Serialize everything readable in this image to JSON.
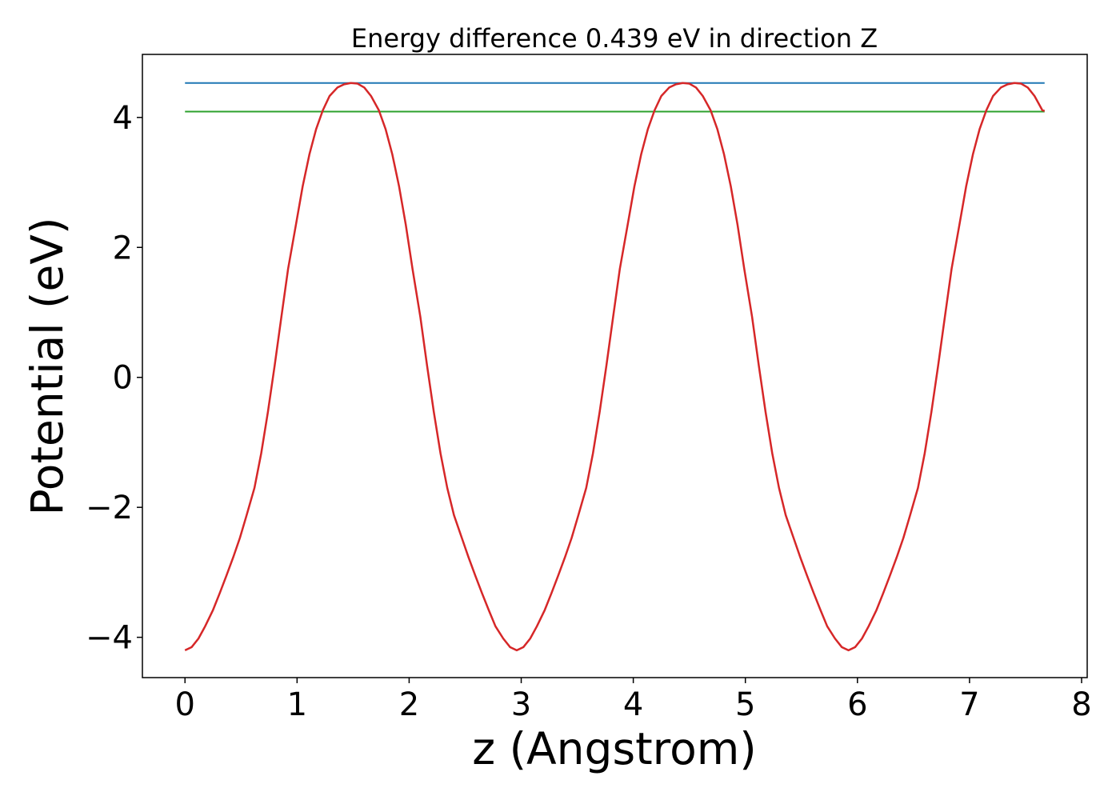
{
  "chart_data": {
    "type": "line",
    "title": "Energy difference 0.439 eV in direction Z",
    "xlabel": "z (Angstrom)",
    "ylabel": "Potential (eV)",
    "xlim": [
      -0.38,
      8.05
    ],
    "ylim": [
      -4.62,
      4.97
    ],
    "xticks": [
      0,
      1,
      2,
      3,
      4,
      5,
      6,
      7,
      8
    ],
    "yticks": [
      -4,
      -2,
      0,
      2,
      4
    ],
    "ytick_labels": [
      "−4",
      "−2",
      "0",
      "2",
      "4"
    ],
    "grid": false,
    "series": [
      {
        "color": "#d62728",
        "x": [
          0,
          0.06,
          0.12,
          0.18,
          0.25,
          0.31,
          0.37,
          0.43,
          0.49,
          0.55,
          0.62,
          0.68,
          0.74,
          0.8,
          0.86,
          0.92,
          0.99,
          1.05,
          1.11,
          1.17,
          1.23,
          1.29,
          1.36,
          1.42,
          1.48,
          1.54,
          1.6,
          1.66,
          1.73,
          1.79,
          1.85,
          1.91,
          1.97,
          2.03,
          2.1,
          2.16,
          2.22,
          2.28,
          2.34,
          2.4,
          2.47,
          2.53,
          2.59,
          2.65,
          2.71,
          2.77,
          2.84,
          2.9,
          2.96,
          3.02,
          3.08,
          3.14,
          3.21,
          3.27,
          3.33,
          3.39,
          3.45,
          3.51,
          3.58,
          3.64,
          3.7,
          3.76,
          3.82,
          3.88,
          3.95,
          4.01,
          4.07,
          4.13,
          4.19,
          4.25,
          4.32,
          4.38,
          4.44,
          4.5,
          4.56,
          4.62,
          4.69,
          4.75,
          4.81,
          4.87,
          4.93,
          4.99,
          5.06,
          5.12,
          5.18,
          5.24,
          5.3,
          5.36,
          5.43,
          5.49,
          5.55,
          5.61,
          5.67,
          5.73,
          5.8,
          5.86,
          5.92,
          5.98,
          6.04,
          6.1,
          6.17,
          6.23,
          6.29,
          6.35,
          6.41,
          6.47,
          6.54,
          6.6,
          6.66,
          6.72,
          6.78,
          6.84,
          6.91,
          6.97,
          7.03,
          7.09,
          7.15,
          7.21,
          7.28,
          7.34,
          7.4,
          7.46,
          7.52,
          7.58,
          7.65,
          7.67
        ],
        "y": [
          -4.2,
          -4.15,
          -4.02,
          -3.83,
          -3.58,
          -3.32,
          -3.05,
          -2.77,
          -2.47,
          -2.12,
          -1.7,
          -1.17,
          -0.53,
          0.18,
          0.93,
          1.67,
          2.35,
          2.94,
          3.43,
          3.82,
          4.11,
          4.33,
          4.46,
          4.51,
          4.53,
          4.52,
          4.46,
          4.33,
          4.11,
          3.82,
          3.43,
          2.94,
          2.35,
          1.67,
          0.93,
          0.18,
          -0.53,
          -1.17,
          -1.7,
          -2.12,
          -2.47,
          -2.77,
          -3.05,
          -3.32,
          -3.58,
          -3.83,
          -4.02,
          -4.15,
          -4.2,
          -4.15,
          -4.02,
          -3.83,
          -3.58,
          -3.32,
          -3.05,
          -2.77,
          -2.47,
          -2.12,
          -1.7,
          -1.17,
          -0.53,
          0.18,
          0.93,
          1.67,
          2.35,
          2.94,
          3.43,
          3.82,
          4.11,
          4.33,
          4.46,
          4.51,
          4.53,
          4.52,
          4.46,
          4.33,
          4.11,
          3.82,
          3.43,
          2.94,
          2.35,
          1.67,
          0.93,
          0.18,
          -0.53,
          -1.17,
          -1.7,
          -2.12,
          -2.47,
          -2.77,
          -3.05,
          -3.32,
          -3.58,
          -3.83,
          -4.02,
          -4.15,
          -4.2,
          -4.15,
          -4.02,
          -3.83,
          -3.58,
          -3.32,
          -3.05,
          -2.77,
          -2.47,
          -2.12,
          -1.7,
          -1.17,
          -0.53,
          0.18,
          0.93,
          1.67,
          2.35,
          2.94,
          3.43,
          3.82,
          4.11,
          4.33,
          4.46,
          4.51,
          4.53,
          4.52,
          4.46,
          4.33,
          4.11,
          4.1
        ]
      },
      {
        "color": "#1f77b4",
        "x": [
          0,
          7.67
        ],
        "y": [
          4.53,
          4.53
        ]
      },
      {
        "color": "#2ca02c",
        "x": [
          0,
          7.67
        ],
        "y": [
          4.09,
          4.09
        ]
      }
    ]
  }
}
